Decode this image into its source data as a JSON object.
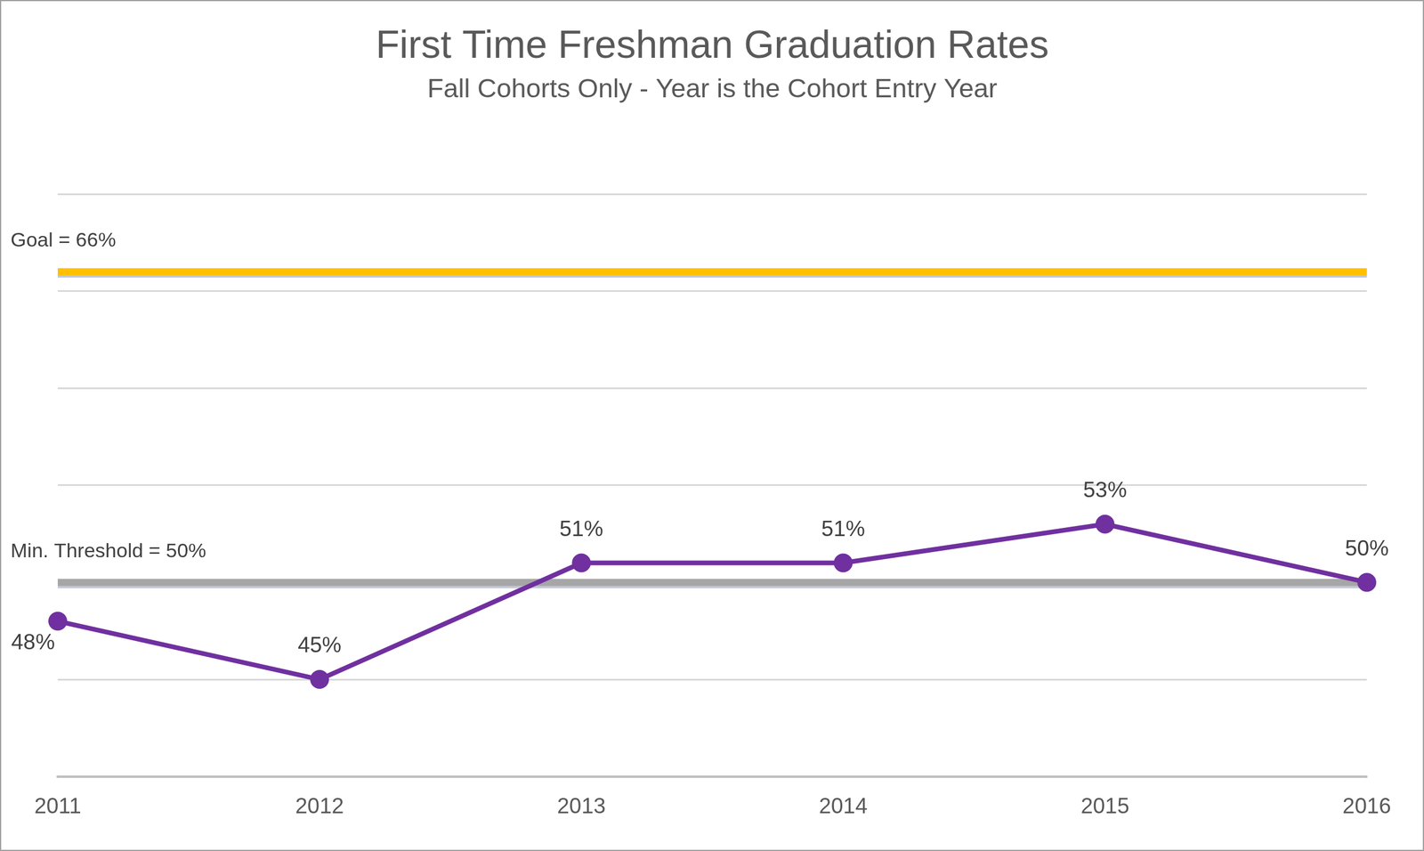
{
  "chart_data": {
    "type": "line",
    "title": "First Time Freshman Graduation Rates",
    "subtitle": "Fall Cohorts Only - Year is the Cohort Entry Year",
    "categories": [
      "2011",
      "2012",
      "2013",
      "2014",
      "2015",
      "2016"
    ],
    "values": [
      48,
      45,
      51,
      51,
      53,
      50
    ],
    "value_labels": [
      "48%",
      "45%",
      "51%",
      "51%",
      "53%",
      "50%"
    ],
    "color": "#7030a0",
    "marker": "circle",
    "line_style": "solid",
    "ylim": [
      40,
      70
    ],
    "yticks": [
      40,
      45,
      50,
      55,
      60,
      65,
      70
    ],
    "grid": true,
    "tick_labels": "x",
    "data_labels": true,
    "annotations": [
      {
        "text": "Goal = 66%",
        "value": 66,
        "color": "#ffc000"
      },
      {
        "text": "Min. Threshold = 50%",
        "value": 50,
        "color": "#a6a6a6"
      }
    ]
  }
}
